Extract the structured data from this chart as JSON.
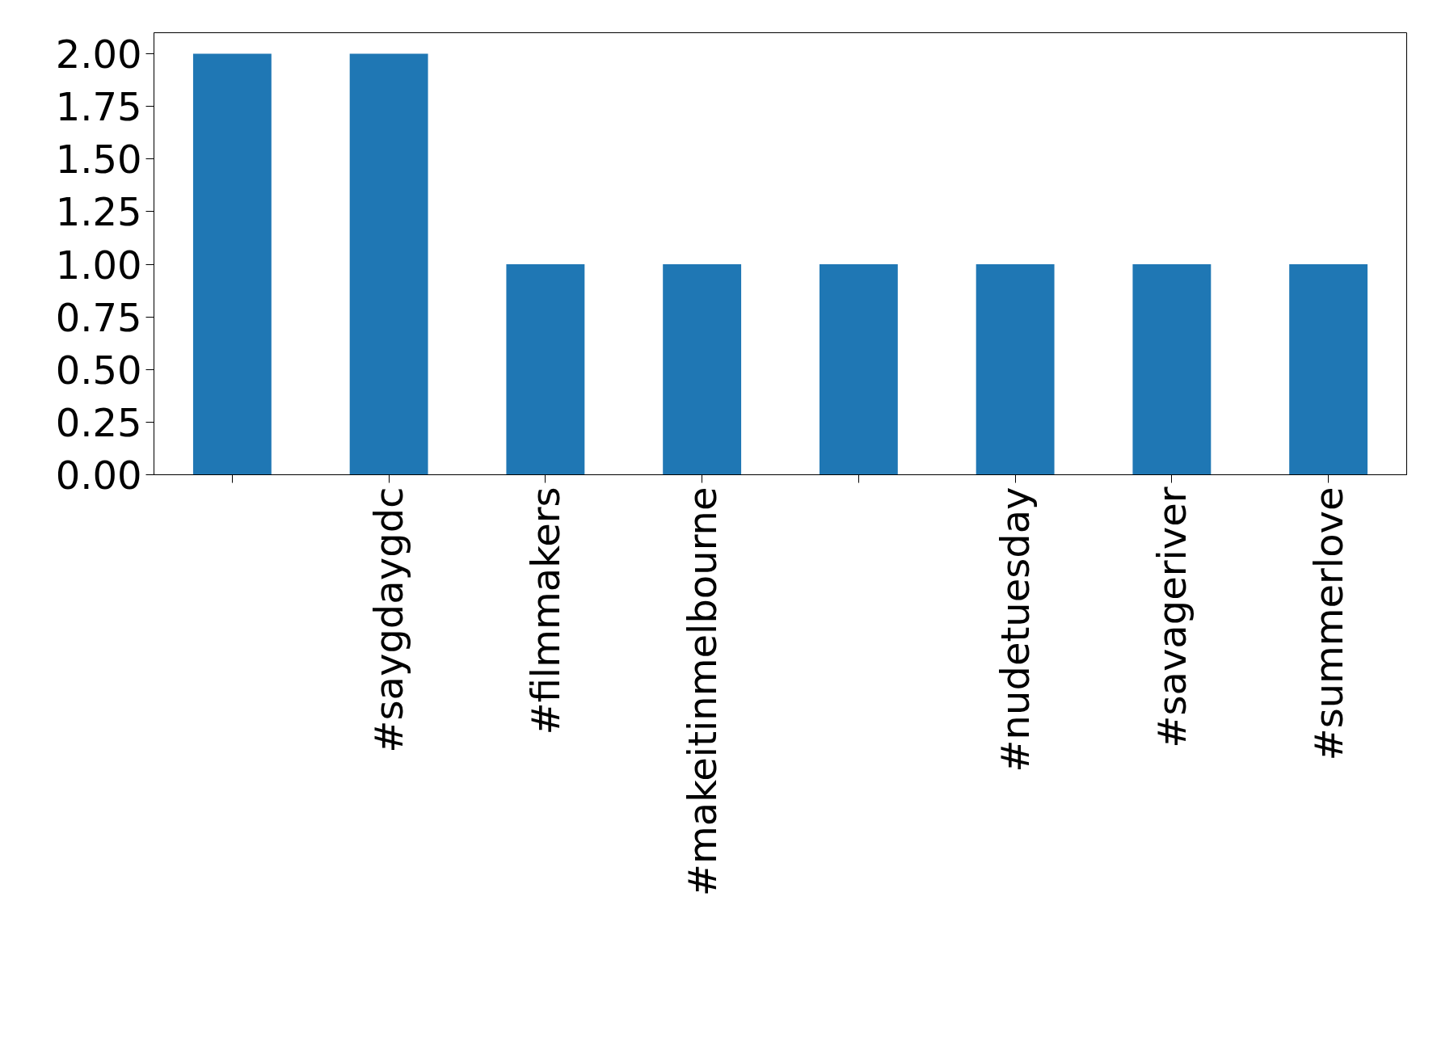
{
  "chart_data": {
    "type": "bar",
    "categories": [
      null,
      "#saygdaygdc",
      "#filmmakers",
      "#makeitinmelbourne",
      null,
      "#nudetuesday",
      "#savageriver",
      "#summerlove"
    ],
    "values": [
      2,
      2,
      1,
      1,
      1,
      1,
      1,
      1
    ],
    "color": "#1f77b4",
    "ylim": [
      0,
      2.1
    ],
    "yticks": [
      {
        "value": 0,
        "label": "0.00"
      },
      {
        "value": 0.25,
        "label": "0.25"
      },
      {
        "value": 0.5,
        "label": "0.50"
      },
      {
        "value": 0.75,
        "label": "0.75"
      },
      {
        "value": 1,
        "label": "1.00"
      },
      {
        "value": 1.25,
        "label": "1.25"
      },
      {
        "value": 1.5,
        "label": "1.50"
      },
      {
        "value": 1.75,
        "label": "1.75"
      },
      {
        "value": 2,
        "label": "2.00"
      }
    ],
    "grid": false
  }
}
